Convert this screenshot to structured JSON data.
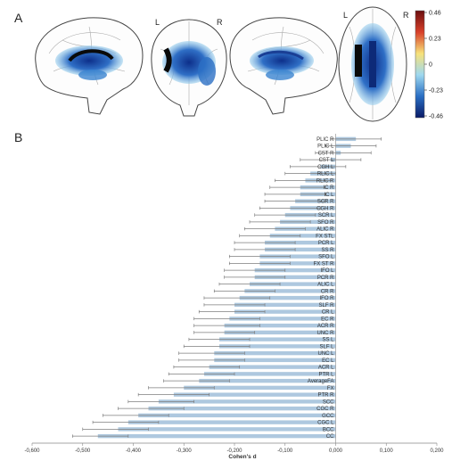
{
  "panels": {
    "a_label": "A",
    "b_label": "B"
  },
  "brain": {
    "view_labels": [
      {
        "left": "L",
        "right": "R"
      },
      {
        "left": "L",
        "right": "R"
      }
    ],
    "colorbar": {
      "ticks": [
        "0.46",
        "0.23",
        "0",
        "-0.23",
        "-0.46"
      ],
      "colors": [
        "#6b0f0f",
        "#d8402a",
        "#f7e27a",
        "#9ed8ef",
        "#2a6fc4",
        "#0a1a66"
      ]
    }
  },
  "chart_data": {
    "type": "bar",
    "orientation": "horizontal",
    "xlabel": "Cohen's d",
    "xlim": [
      -0.6,
      0.2
    ],
    "xticks": [
      "-0,600",
      "-0,500",
      "-0,400",
      "-0,300",
      "-0,200",
      "-0,100",
      "0,000",
      "0,100",
      "0,200"
    ],
    "bar_color": "#aec8df",
    "error_color": "#7f7f7f",
    "categories": [
      "PLIC R",
      "PLIC L",
      "CST R",
      "CST L",
      "CGH L",
      "RLIC L",
      "RLIC R",
      "IC R",
      "IC L",
      "SCR R",
      "CGH R",
      "SCR L",
      "SFO R",
      "ALIC R",
      "FX STL",
      "PCR L",
      "SS R",
      "SFO L",
      "FX ST R",
      "IFO L",
      "PCR R",
      "ALIC L",
      "CR R",
      "IFO R",
      "SLF R",
      "CR L",
      "EC R",
      "ACR R",
      "UNC R",
      "SS L",
      "SLF L",
      "UNC L",
      "EC L",
      "ACR L",
      "PTR L",
      "AverageFA",
      "FX",
      "PTR R",
      "SCC",
      "CGC R",
      "GCC",
      "CGC L",
      "BCC",
      "CC"
    ],
    "values": [
      0.04,
      0.03,
      0.01,
      -0.01,
      -0.03,
      -0.05,
      -0.06,
      -0.07,
      -0.07,
      -0.08,
      -0.09,
      -0.1,
      -0.11,
      -0.12,
      -0.13,
      -0.14,
      -0.14,
      -0.15,
      -0.15,
      -0.16,
      -0.16,
      -0.17,
      -0.18,
      -0.19,
      -0.2,
      -0.2,
      -0.21,
      -0.22,
      -0.22,
      -0.23,
      -0.23,
      -0.24,
      -0.24,
      -0.25,
      -0.26,
      -0.27,
      -0.3,
      -0.32,
      -0.35,
      -0.37,
      -0.39,
      -0.41,
      -0.43,
      -0.47
    ],
    "ci_low": [
      -0.01,
      -0.02,
      -0.04,
      -0.07,
      -0.09,
      -0.1,
      -0.12,
      -0.13,
      -0.14,
      -0.14,
      -0.15,
      -0.16,
      -0.17,
      -0.18,
      -0.19,
      -0.2,
      -0.2,
      -0.21,
      -0.21,
      -0.22,
      -0.22,
      -0.23,
      -0.24,
      -0.26,
      -0.26,
      -0.27,
      -0.28,
      -0.28,
      -0.28,
      -0.29,
      -0.3,
      -0.31,
      -0.31,
      -0.32,
      -0.33,
      -0.34,
      -0.37,
      -0.39,
      -0.41,
      -0.43,
      -0.46,
      -0.48,
      -0.5,
      -0.52
    ],
    "ci_high": [
      0.09,
      0.08,
      0.07,
      0.05,
      0.02,
      0.0,
      -0.01,
      -0.02,
      -0.02,
      -0.02,
      -0.03,
      -0.04,
      -0.05,
      -0.06,
      -0.07,
      -0.08,
      -0.08,
      -0.09,
      -0.09,
      -0.1,
      -0.1,
      -0.11,
      -0.12,
      -0.13,
      -0.14,
      -0.14,
      -0.15,
      -0.15,
      -0.16,
      -0.17,
      -0.17,
      -0.18,
      -0.18,
      -0.19,
      -0.2,
      -0.21,
      -0.24,
      -0.25,
      -0.28,
      -0.3,
      -0.33,
      -0.35,
      -0.37,
      -0.41
    ]
  }
}
